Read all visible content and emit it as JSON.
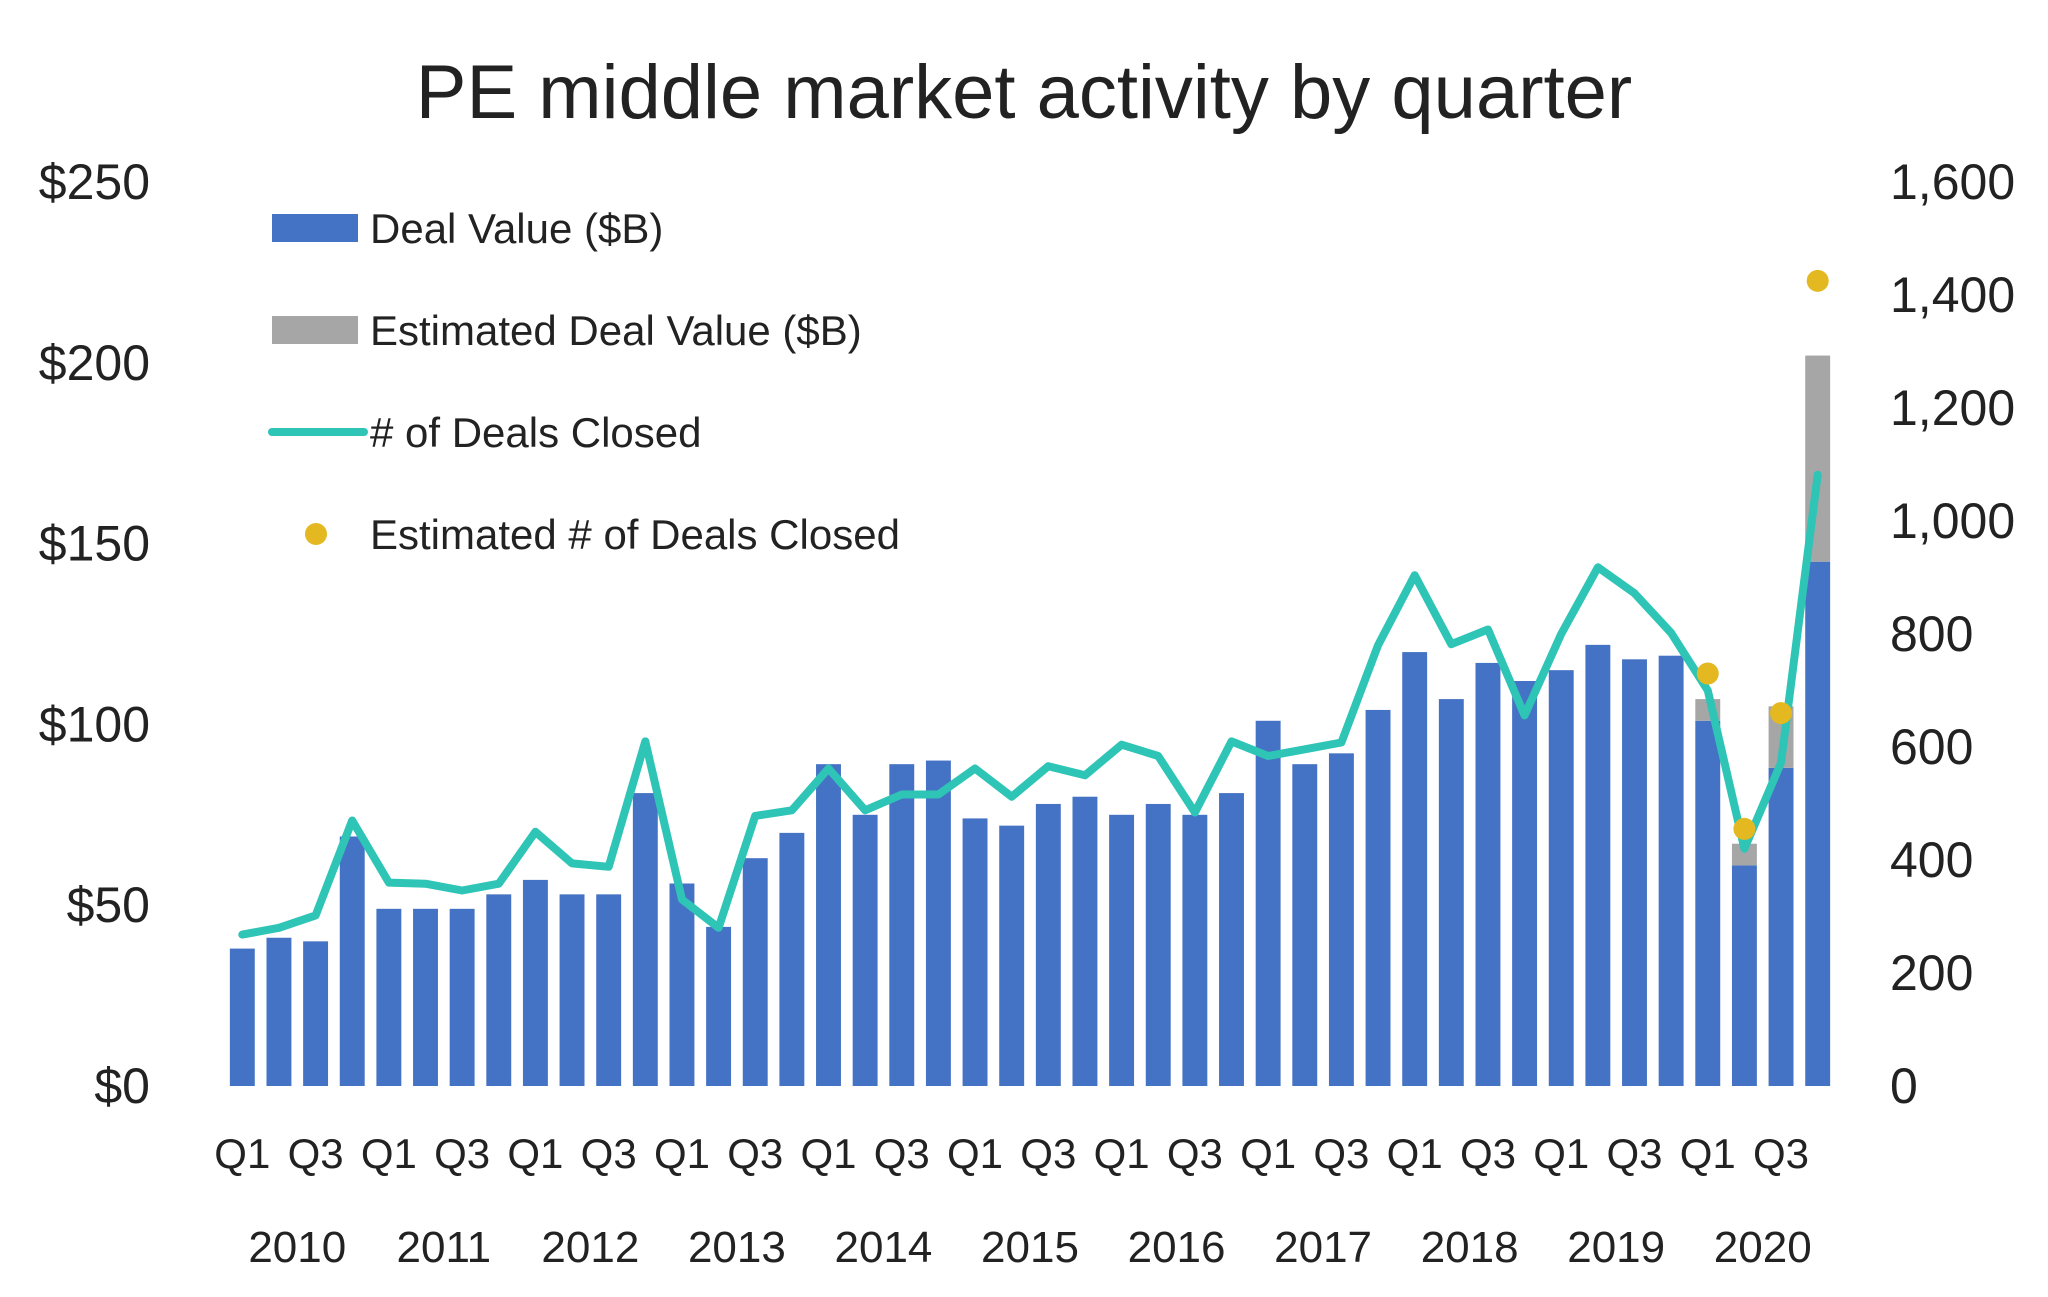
{
  "chart_data": {
    "type": "bar",
    "title": "PE middle market activity by quarter",
    "xlabel": "",
    "ylabel": "",
    "y2label": "",
    "ylim": [
      0,
      250
    ],
    "y2lim": [
      0,
      1600
    ],
    "yticks": [
      "$0",
      "$50",
      "$100",
      "$150",
      "$200",
      "$250"
    ],
    "y2ticks": [
      "0",
      "200",
      "400",
      "600",
      "800",
      "1,000",
      "1,200",
      "1,400",
      "1,600"
    ],
    "grid": false,
    "legend_placement": "top-left",
    "quarter_labels": [
      "Q1",
      "Q3",
      "Q1",
      "Q3",
      "Q1",
      "Q3",
      "Q1",
      "Q3",
      "Q1",
      "Q3",
      "Q1",
      "Q3",
      "Q1",
      "Q3",
      "Q1",
      "Q3",
      "Q1",
      "Q3",
      "Q1",
      "Q3",
      "Q1",
      "Q3"
    ],
    "years": [
      "2010",
      "2011",
      "2012",
      "2013",
      "2014",
      "2015",
      "2016",
      "2017",
      "2018",
      "2019",
      "2020"
    ],
    "categories": [
      "2010 Q1",
      "2010 Q2",
      "2010 Q3",
      "2010 Q4",
      "2011 Q1",
      "2011 Q2",
      "2011 Q3",
      "2011 Q4",
      "2012 Q1",
      "2012 Q2",
      "2012 Q3",
      "2012 Q4",
      "2013 Q1",
      "2013 Q2",
      "2013 Q3",
      "2013 Q4",
      "2014 Q1",
      "2014 Q2",
      "2014 Q3",
      "2014 Q4",
      "2015 Q1",
      "2015 Q2",
      "2015 Q3",
      "2015 Q4",
      "2016 Q1",
      "2016 Q2",
      "2016 Q3",
      "2016 Q4",
      "2017 Q1",
      "2017 Q2",
      "2017 Q3",
      "2017 Q4",
      "2018 Q1",
      "2018 Q2",
      "2018 Q3",
      "2018 Q4",
      "2019 Q1",
      "2019 Q2",
      "2019 Q3",
      "2019 Q4",
      "2020 Q1",
      "2020 Q2",
      "2020 Q3",
      "2020 Q4"
    ],
    "series": [
      {
        "name": "Deal Value ($B)",
        "type": "bar",
        "axis": "left",
        "color": "#4472C4",
        "values": [
          38,
          41,
          40,
          69,
          49,
          49,
          49,
          53,
          57,
          53,
          53,
          81,
          56,
          44,
          63,
          70,
          89,
          75,
          89,
          90,
          74,
          72,
          78,
          80,
          75,
          78,
          75,
          81,
          101,
          89,
          92,
          104,
          120,
          107,
          117,
          112,
          115,
          122,
          118,
          119,
          101,
          61,
          88,
          145
        ]
      },
      {
        "name": "Estimated Deal Value ($B)",
        "type": "bar-stacked",
        "axis": "left",
        "color": "#A6A6A6",
        "values": [
          0,
          0,
          0,
          0,
          0,
          0,
          0,
          0,
          0,
          0,
          0,
          0,
          0,
          0,
          0,
          0,
          0,
          0,
          0,
          0,
          0,
          0,
          0,
          0,
          0,
          0,
          0,
          0,
          0,
          0,
          0,
          0,
          0,
          0,
          0,
          0,
          0,
          0,
          0,
          0,
          6,
          6,
          17,
          57
        ]
      },
      {
        "name": "# of Deals Closed",
        "type": "line",
        "axis": "right",
        "color": "#2EC4B6",
        "values": [
          268,
          280,
          302,
          470,
          360,
          358,
          346,
          358,
          450,
          394,
          388,
          610,
          330,
          280,
          478,
          488,
          562,
          488,
          516,
          516,
          562,
          512,
          566,
          550,
          604,
          584,
          484,
          610,
          584,
          596,
          608,
          780,
          904,
          782,
          808,
          656,
          800,
          918,
          872,
          802,
          700,
          420,
          572,
          1082
        ]
      },
      {
        "name": "Estimated # of Deals Closed",
        "type": "scatter",
        "axis": "right",
        "color": "#E3B820",
        "values": [
          null,
          null,
          null,
          null,
          null,
          null,
          null,
          null,
          null,
          null,
          null,
          null,
          null,
          null,
          null,
          null,
          null,
          null,
          null,
          null,
          null,
          null,
          null,
          null,
          null,
          null,
          null,
          null,
          null,
          null,
          null,
          null,
          null,
          null,
          null,
          null,
          null,
          null,
          null,
          null,
          730,
          455,
          660,
          1425
        ]
      }
    ]
  }
}
